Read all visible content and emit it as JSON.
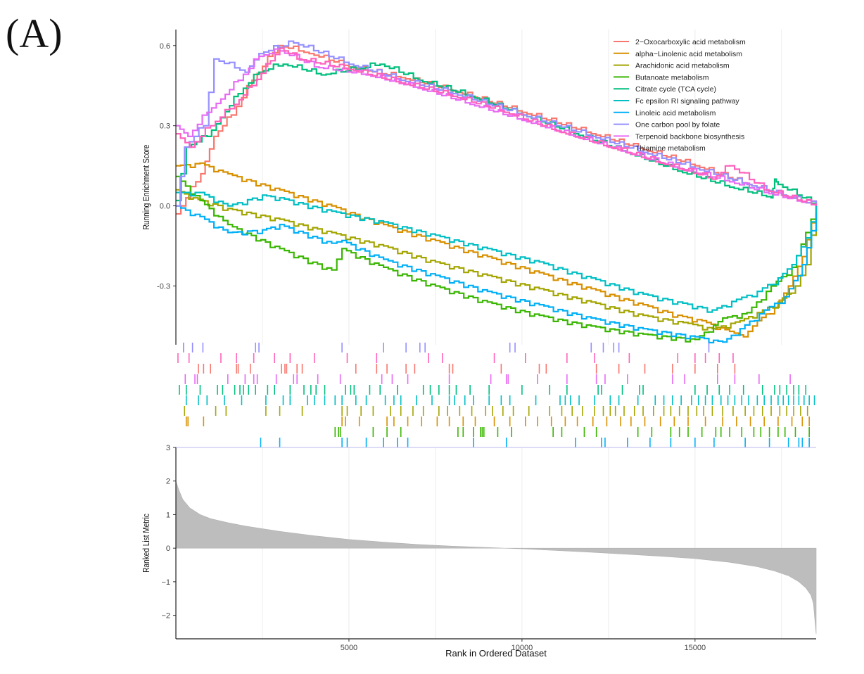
{
  "panel_label": "(A)",
  "chart_data": {
    "type": "line",
    "title": "",
    "xlabel": "Rank in Ordered Dataset",
    "xlim": [
      0,
      18500
    ],
    "x_ticks": [
      5000,
      10000,
      15000
    ],
    "x_tick_labels": [
      "5000",
      "10000",
      "15000"
    ],
    "es_panel": {
      "ylabel": "Running Enrichment Score",
      "ylim": [
        -0.52,
        0.66
      ],
      "y_ticks": [
        0.6,
        0.3,
        0.0,
        -0.3
      ],
      "y_tick_labels": [
        "0.6",
        "0.3",
        "0.0",
        "-0.3"
      ],
      "grid": true
    },
    "metric_panel": {
      "ylabel": "Ranked List Metric",
      "ylim": [
        -2.7,
        3
      ],
      "y_ticks": [
        3,
        2,
        1,
        0,
        -1,
        -2
      ],
      "y_tick_labels": [
        "3",
        "2",
        "1",
        "0",
        "−1",
        "−2"
      ],
      "curve": {
        "x": [
          0,
          80,
          200,
          400,
          700,
          1000,
          1500,
          2000,
          3000,
          4000,
          5000,
          6000,
          7000,
          8000,
          9000,
          9500,
          10000,
          11000,
          12000,
          13000,
          14000,
          15000,
          16000,
          16800,
          17300,
          17700,
          18000,
          18200,
          18350,
          18420,
          18460,
          18500
        ],
        "y": [
          2.0,
          1.75,
          1.45,
          1.2,
          1.0,
          0.88,
          0.76,
          0.66,
          0.5,
          0.37,
          0.26,
          0.18,
          0.11,
          0.06,
          0.02,
          0.0,
          -0.02,
          -0.07,
          -0.12,
          -0.18,
          -0.24,
          -0.31,
          -0.42,
          -0.55,
          -0.68,
          -0.82,
          -1.0,
          -1.18,
          -1.4,
          -1.65,
          -2.1,
          -2.55
        ]
      }
    },
    "legend_position": "top-right",
    "series": [
      {
        "name": "2−Oxocarboxylic acid metabolism",
        "color": "#F8766D",
        "direction": "up",
        "x": [
          0,
          720,
          1100,
          1600,
          2200,
          2950,
          3850,
          5000,
          6500,
          8000,
          10000,
          12000,
          13500,
          15000,
          16500,
          17500,
          18500
        ],
        "y": [
          -0.03,
          0.12,
          0.26,
          0.34,
          0.47,
          0.6,
          0.57,
          0.52,
          0.48,
          0.43,
          0.35,
          0.27,
          0.21,
          0.15,
          0.08,
          0.04,
          0.0
        ]
      },
      {
        "name": "alpha−Linolenic acid metabolism",
        "color": "#D89000",
        "direction": "down",
        "x": [
          0,
          700,
          1500,
          3000,
          4500,
          6000,
          7500,
          9000,
          10500,
          12000,
          13500,
          14500,
          15200,
          16000,
          16400,
          16800,
          17300,
          17700,
          18100,
          18500
        ],
        "y": [
          0.15,
          0.16,
          0.12,
          0.06,
          0.0,
          -0.07,
          -0.13,
          -0.19,
          -0.25,
          -0.31,
          -0.37,
          -0.41,
          -0.43,
          -0.47,
          -0.49,
          -0.43,
          -0.38,
          -0.3,
          -0.19,
          0.0
        ]
      },
      {
        "name": "Arachidonic acid metabolism",
        "color": "#A3A500",
        "direction": "down",
        "x": [
          0,
          500,
          1500,
          3000,
          4500,
          6000,
          7500,
          9000,
          10500,
          12000,
          13500,
          14800,
          15500,
          16300,
          16800,
          17400,
          17900,
          18200,
          18500
        ],
        "y": [
          0.06,
          0.03,
          -0.01,
          -0.05,
          -0.1,
          -0.15,
          -0.21,
          -0.26,
          -0.31,
          -0.36,
          -0.41,
          -0.44,
          -0.46,
          -0.43,
          -0.4,
          -0.36,
          -0.3,
          -0.22,
          0.0
        ]
      },
      {
        "name": "Butanoate metabolism",
        "color": "#39B600",
        "direction": "down",
        "x": [
          0,
          700,
          1500,
          3000,
          4500,
          4800,
          6000,
          7500,
          9000,
          10500,
          12000,
          13500,
          15000,
          15800,
          16500,
          17200,
          17800,
          18200,
          18500
        ],
        "y": [
          0.11,
          0.02,
          -0.07,
          -0.16,
          -0.24,
          -0.16,
          -0.23,
          -0.3,
          -0.36,
          -0.41,
          -0.45,
          -0.48,
          -0.5,
          -0.42,
          -0.4,
          -0.3,
          -0.23,
          -0.1,
          0.0
        ]
      },
      {
        "name": "Citrate cycle (TCA cycle)",
        "color": "#00BF7D",
        "direction": "up",
        "x": [
          0,
          300,
          900,
          1300,
          1800,
          2400,
          3100,
          4200,
          5200,
          5900,
          7000,
          8500,
          10000,
          11500,
          13000,
          14500,
          16000,
          17200,
          17300,
          17400,
          18500
        ],
        "y": [
          0.02,
          0.22,
          0.26,
          0.33,
          0.42,
          0.5,
          0.53,
          0.49,
          0.51,
          0.53,
          0.47,
          0.41,
          0.34,
          0.27,
          0.2,
          0.13,
          0.07,
          0.03,
          0.1,
          0.08,
          0.0
        ]
      },
      {
        "name": "Fc epsilon RI signaling pathway",
        "color": "#00BFC4",
        "direction": "down",
        "x": [
          0,
          700,
          1500,
          2500,
          3000,
          4500,
          6000,
          7500,
          9000,
          10500,
          12000,
          13500,
          14500,
          15500,
          16200,
          16800,
          17400,
          17800,
          18200,
          18500
        ],
        "y": [
          0.05,
          0.05,
          0.0,
          0.04,
          0.03,
          -0.02,
          -0.06,
          -0.11,
          -0.16,
          -0.21,
          -0.27,
          -0.33,
          -0.36,
          -0.39,
          -0.35,
          -0.32,
          -0.27,
          -0.22,
          -0.12,
          0.0
        ]
      },
      {
        "name": "Linoleic acid metabolism",
        "color": "#00B0F6",
        "direction": "down",
        "x": [
          0,
          700,
          1500,
          2500,
          3000,
          4500,
          4800,
          6000,
          7500,
          9000,
          10500,
          12000,
          13500,
          15000,
          15800,
          16300,
          17000,
          17600,
          18100,
          18500
        ],
        "y": [
          0.0,
          -0.04,
          -0.1,
          -0.09,
          -0.07,
          -0.14,
          -0.13,
          -0.2,
          -0.26,
          -0.32,
          -0.37,
          -0.42,
          -0.46,
          -0.49,
          -0.51,
          -0.46,
          -0.39,
          -0.34,
          -0.22,
          -0.03
        ]
      },
      {
        "name": "One carbon pool by folate",
        "color": "#9590FF",
        "direction": "up",
        "x": [
          0,
          250,
          800,
          1100,
          2000,
          2400,
          3400,
          5000,
          6500,
          8000,
          10000,
          12000,
          13500,
          15000,
          16500,
          17500,
          18500
        ],
        "y": [
          0.0,
          0.22,
          0.3,
          0.55,
          0.5,
          0.57,
          0.61,
          0.53,
          0.47,
          0.42,
          0.34,
          0.26,
          0.2,
          0.14,
          0.08,
          0.04,
          0.0
        ]
      },
      {
        "name": "Terpenoid backbone biosynthesis",
        "color": "#E76BF3",
        "direction": "up",
        "x": [
          0,
          350,
          900,
          1300,
          1800,
          2400,
          3000,
          4000,
          5500,
          7000,
          8500,
          10000,
          11500,
          13000,
          14500,
          16000,
          17000,
          18500
        ],
        "y": [
          0.3,
          0.26,
          0.35,
          0.4,
          0.47,
          0.56,
          0.58,
          0.52,
          0.49,
          0.44,
          0.38,
          0.32,
          0.26,
          0.2,
          0.14,
          0.09,
          0.05,
          0.0
        ]
      },
      {
        "name": "Thiamine metabolism",
        "color": "#FF62BC",
        "direction": "up",
        "x": [
          0,
          400,
          1000,
          1700,
          2200,
          3000,
          3500,
          5000,
          6500,
          8000,
          9500,
          11000,
          12500,
          14000,
          15500,
          16000,
          17000,
          18500
        ],
        "y": [
          0.27,
          0.22,
          0.3,
          0.38,
          0.45,
          0.59,
          0.55,
          0.51,
          0.46,
          0.41,
          0.35,
          0.28,
          0.22,
          0.16,
          0.1,
          0.15,
          0.06,
          0.0
        ]
      }
    ],
    "hit_rows": [
      {
        "series": "One carbon pool by folate",
        "hits": [
          220,
          480,
          780,
          2300,
          2400,
          4800,
          6000,
          6650,
          7050,
          7200,
          9650,
          9800,
          12000,
          12350,
          12650,
          12800,
          15400
        ]
      },
      {
        "series": "Thiamine metabolism",
        "hits": [
          60,
          380,
          1300,
          1750,
          2250,
          2850,
          3300,
          4000,
          4950,
          5800,
          7300,
          7700,
          9200,
          10100,
          11300,
          12100,
          13100,
          14500,
          15000,
          15300,
          15700,
          16100
        ]
      },
      {
        "series": "2−Oxocarboxylic acid metabolism",
        "hits": [
          650,
          800,
          1000,
          1750,
          1800,
          2150,
          3050,
          3150,
          3200,
          3500,
          3650,
          5200,
          5800,
          6100,
          6650,
          6900,
          7900,
          8000,
          9400,
          10500,
          10700,
          12150,
          12800,
          13550,
          14350,
          15000,
          15650,
          16150
        ]
      },
      {
        "series": "Terpenoid backbone biosynthesis",
        "hits": [
          270,
          550,
          620,
          1500,
          2000,
          2250,
          2350,
          2900,
          3400,
          3500,
          4100,
          4750,
          5950,
          6250,
          6700,
          7900,
          9100,
          9550,
          9600,
          10450,
          11300,
          12150,
          12400,
          13050,
          14350,
          14700,
          15650,
          16150,
          16850,
          17750
        ]
      },
      {
        "series": "Citrate cycle (TCA cycle)",
        "hits": [
          100,
          300,
          700,
          1200,
          1350,
          1700,
          1850,
          1950,
          2100,
          2300,
          2650,
          2850,
          3300,
          3700,
          3900,
          4050,
          4300,
          4900,
          5050,
          5150,
          5600,
          5900,
          6400,
          7150,
          7350,
          7600,
          7900,
          8100,
          8500,
          9050,
          10000,
          10800,
          11300,
          12200,
          12300,
          12900,
          13400,
          13500,
          15000,
          15350,
          15700,
          16000,
          16400,
          16950,
          17300,
          17450,
          17650,
          17850,
          18000,
          18200
        ]
      },
      {
        "series": "Fc epsilon RI signaling pathway",
        "hits": [
          300,
          650,
          900,
          1400,
          1900,
          2600,
          3100,
          3300,
          3800,
          4000,
          4300,
          4600,
          4800,
          5200,
          5500,
          6050,
          6300,
          6500,
          6950,
          7400,
          7900,
          8050,
          8350,
          8600,
          9050,
          9400,
          9650,
          10400,
          11100,
          11250,
          11400,
          11650,
          12100,
          12550,
          12800,
          13350,
          13850,
          14100,
          14350,
          14600,
          14900,
          15100,
          15300,
          15500,
          15750,
          15950,
          16150,
          16350,
          16550,
          16800,
          17000,
          17200,
          17400,
          17550,
          17700,
          17850,
          18000,
          18150,
          18300,
          18450
        ]
      },
      {
        "series": "Arachidonic acid metabolism",
        "hits": [
          250,
          1150,
          1450,
          2600,
          3000,
          3650,
          4800,
          4950,
          5350,
          5700,
          6200,
          6500,
          6850,
          7150,
          7600,
          7850,
          8200,
          8550,
          8950,
          9150,
          9450,
          9750,
          10200,
          10800,
          11150,
          11450,
          11750,
          12100,
          12350,
          12550,
          12700,
          12950,
          13250,
          13500,
          13800,
          14100,
          14300,
          14550,
          14800,
          15050,
          15250,
          15500,
          15800,
          16100,
          16450,
          16700,
          16950,
          17200,
          17450,
          17650,
          17850,
          18050,
          18250
        ]
      },
      {
        "series": "alpha−Linolenic acid metabolism",
        "hits": [
          300,
          350,
          800,
          4800,
          4900,
          5300,
          6100,
          6300,
          6700,
          7100,
          7550,
          7900,
          8300,
          8650,
          9200,
          9650,
          10100,
          10450,
          10850,
          11250,
          11600,
          12050,
          12450,
          12850,
          13150,
          13550,
          14000,
          14400,
          14800,
          15300,
          15800,
          16200,
          16600,
          17000,
          17400,
          17800,
          18100,
          18300
        ]
      },
      {
        "series": "Butanoate metabolism",
        "hits": [
          4600,
          4700,
          4750,
          5700,
          6100,
          6500,
          8150,
          8300,
          8600,
          8800,
          8850,
          8900,
          9300,
          9700,
          10900,
          11150,
          11800,
          12150,
          13350,
          13750,
          14300,
          14550,
          14800,
          15200,
          15600,
          15750,
          16000,
          16350,
          16700,
          16900,
          17150,
          17400,
          17600,
          17900,
          18300
        ]
      },
      {
        "series": "Linoleic acid metabolism",
        "hits": [
          2450,
          3000,
          4800,
          4950,
          5500,
          6000,
          6400,
          6700,
          8600,
          9550,
          11550,
          12300,
          12400,
          13050,
          13700,
          14300,
          15000,
          15550,
          16450,
          17150,
          17700,
          18000,
          18100,
          18300
        ]
      }
    ]
  }
}
